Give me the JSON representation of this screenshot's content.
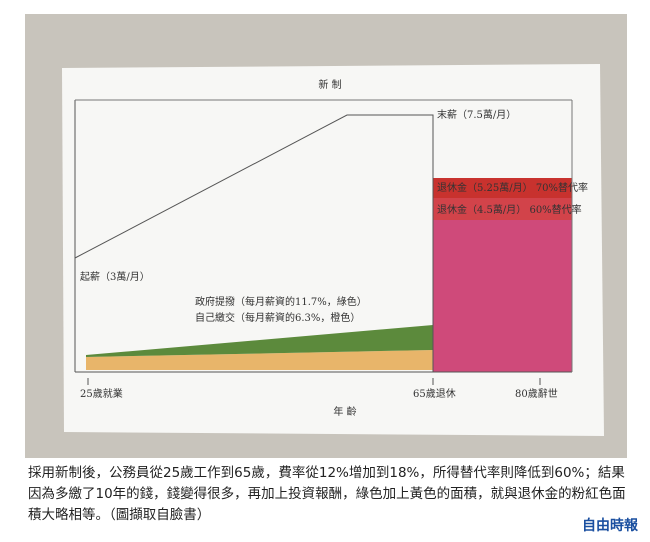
{
  "photo": {
    "title": "新 制",
    "final_salary": "末薪（7.5萬/月）",
    "starting_salary": "起薪（3萬/月）",
    "pension_old": "退休金（5.25萬/月） 70%替代率",
    "pension_new": "退休金（4.5萬/月） 60%替代率",
    "gov_contribution": "政府提撥（每月薪資的11.7%，綠色）",
    "self_contribution": "自己繳交（每月薪資的6.3%，橙色）",
    "age_start": "25歲就業",
    "age_retire": "65歲退休",
    "age_death": "80歲辭世",
    "x_axis": "年 齡"
  },
  "caption": "採用新制後，公務員從25歲工作到65歲，費率從12%增加到18%，所得替代率則降低到60%；結果因為多繳了10年的錢，錢變得很多，再加上投資報酬，綠色加上黃色的面積，就與退休金的粉紅色面積大略相等。（圖擷取自臉書）",
  "source": "自由時報"
}
